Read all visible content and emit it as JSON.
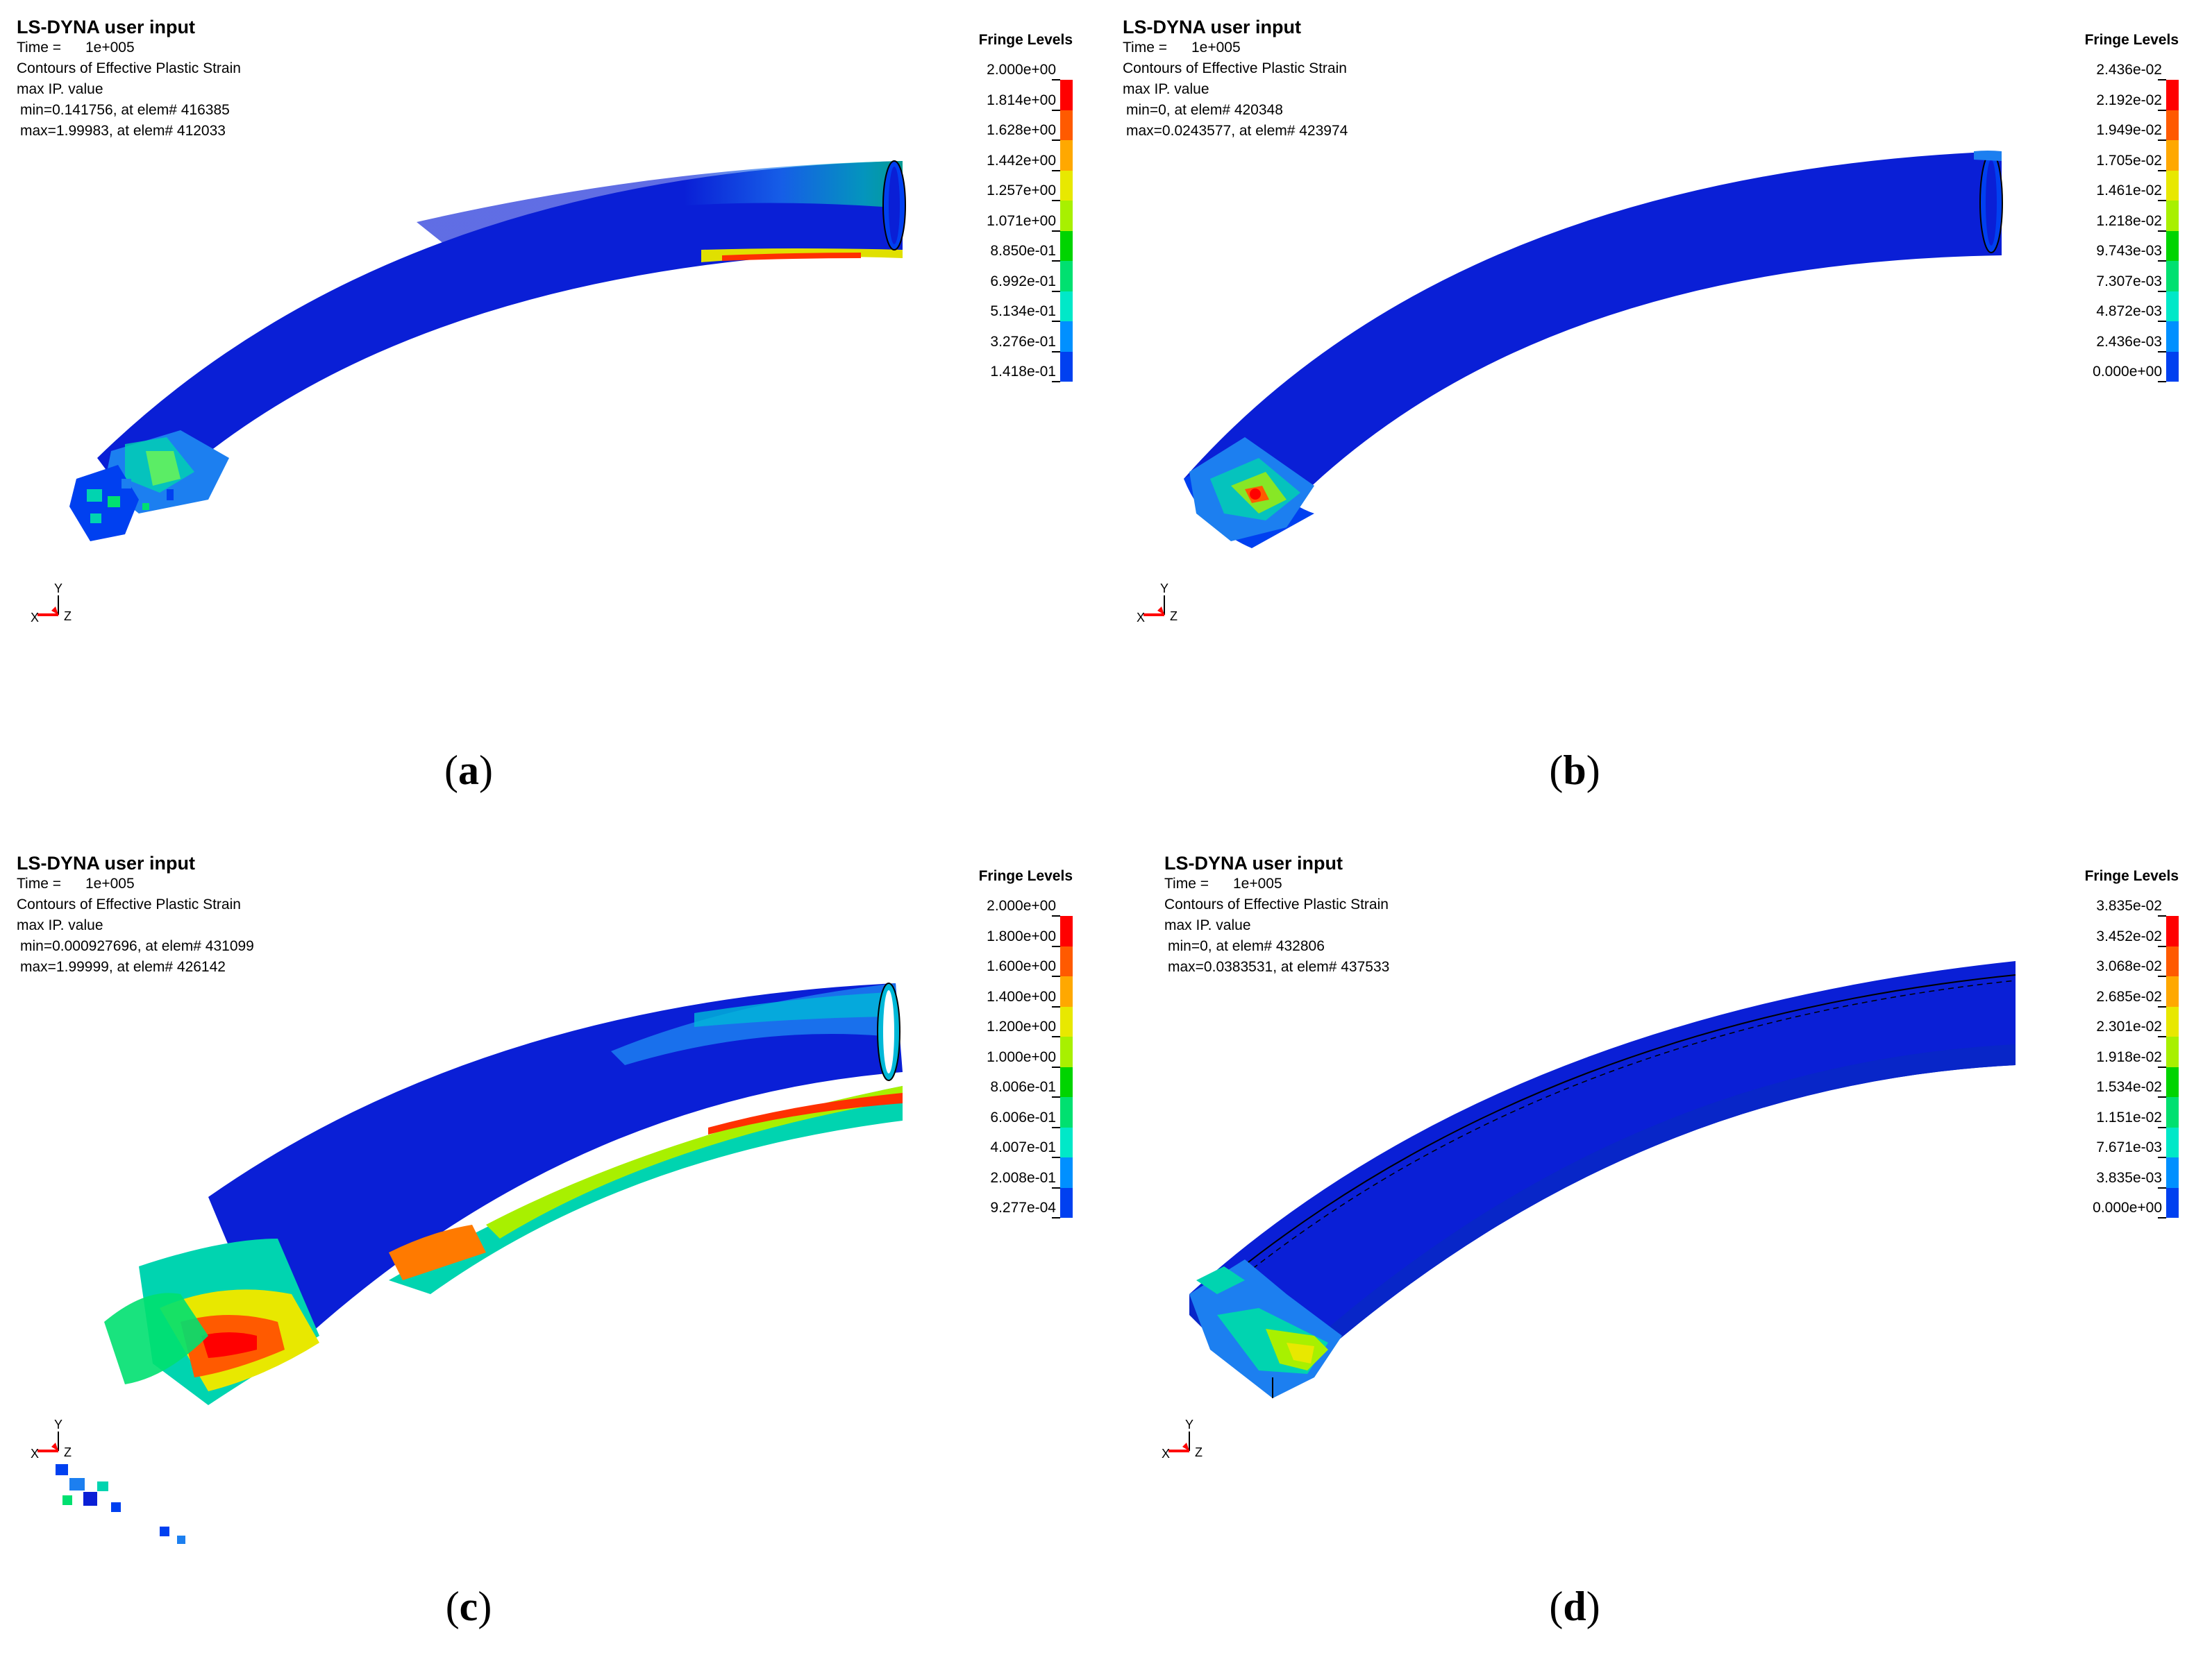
{
  "panels": [
    {
      "caption_open": "(",
      "caption_label": "a",
      "caption_close": ")",
      "header": {
        "title": "LS-DYNA user input",
        "time": "Time =      1e+005",
        "contours": "Contours of Effective Plastic Strain",
        "value": "max IP. value",
        "min": "min=0.141756, at elem# 416385",
        "max": "max=1.99983, at elem# 412033"
      },
      "fringe_title": "Fringe Levels",
      "levels": [
        "2.000e+00",
        "1.814e+00",
        "1.628e+00",
        "1.442e+00",
        "1.257e+00",
        "1.071e+00",
        "8.850e-01",
        "6.992e-01",
        "5.134e-01",
        "3.276e-01",
        "1.418e-01"
      ],
      "axis": {
        "y": "Y",
        "x": "X",
        "z": "Z"
      }
    },
    {
      "caption_open": "(",
      "caption_label": "b",
      "caption_close": ")",
      "header": {
        "title": "LS-DYNA user input",
        "time": "Time =      1e+005",
        "contours": "Contours of Effective Plastic Strain",
        "value": "max IP. value",
        "min": "min=0, at elem# 420348",
        "max": "max=0.0243577, at elem# 423974"
      },
      "fringe_title": "Fringe Levels",
      "levels": [
        "2.436e-02",
        "2.192e-02",
        "1.949e-02",
        "1.705e-02",
        "1.461e-02",
        "1.218e-02",
        "9.743e-03",
        "7.307e-03",
        "4.872e-03",
        "2.436e-03",
        "0.000e+00"
      ],
      "axis": {
        "y": "Y",
        "x": "X",
        "z": "Z"
      }
    },
    {
      "caption_open": "(",
      "caption_label": "c",
      "caption_close": ")",
      "header": {
        "title": "LS-DYNA user input",
        "time": "Time =      1e+005",
        "contours": "Contours of Effective Plastic Strain",
        "value": "max IP. value",
        "min": "min=0.000927696, at elem# 431099",
        "max": "max=1.99999, at elem# 426142"
      },
      "fringe_title": "Fringe Levels",
      "levels": [
        "2.000e+00",
        "1.800e+00",
        "1.600e+00",
        "1.400e+00",
        "1.200e+00",
        "1.000e+00",
        "8.006e-01",
        "6.006e-01",
        "4.007e-01",
        "2.008e-01",
        "9.277e-04"
      ],
      "axis": {
        "y": "Y",
        "x": "X",
        "z": "Z"
      }
    },
    {
      "caption_open": "(",
      "caption_label": "d",
      "caption_close": ")",
      "header": {
        "title": "LS-DYNA user input",
        "time": "Time =      1e+005",
        "contours": "Contours of Effective Plastic Strain",
        "value": "max IP. value",
        "min": "min=0, at elem# 432806",
        "max": "max=0.0383531, at elem# 437533"
      },
      "fringe_title": "Fringe Levels",
      "levels": [
        "3.835e-02",
        "3.452e-02",
        "3.068e-02",
        "2.685e-02",
        "2.301e-02",
        "1.918e-02",
        "1.534e-02",
        "1.151e-02",
        "7.671e-03",
        "3.835e-03",
        "0.000e+00"
      ],
      "axis": {
        "y": "Y",
        "x": "X",
        "z": "Z"
      }
    }
  ],
  "colors": {
    "scale": [
      "#ff0000",
      "#ff5a00",
      "#ffa800",
      "#e8e800",
      "#a8f000",
      "#00d400",
      "#00e070",
      "#00e8c8",
      "#0090ff",
      "#0040f0",
      "#0000e6"
    ],
    "base_blue": "#0a1fd6"
  }
}
